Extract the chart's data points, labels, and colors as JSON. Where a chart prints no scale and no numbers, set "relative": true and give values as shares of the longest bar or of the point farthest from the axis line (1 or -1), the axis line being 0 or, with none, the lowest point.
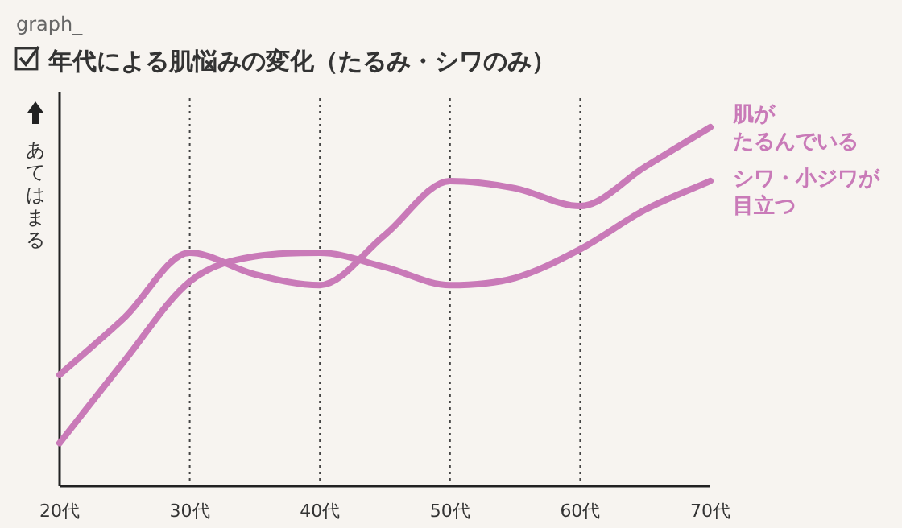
{
  "chart_data": {
    "type": "line",
    "title": "年代による肌悩みの変化（たるみ・シワのみ）",
    "ylabel": "あてはまる",
    "annotations": [
      "graph_"
    ],
    "relative": true,
    "grid": "x",
    "x": [
      20,
      25,
      30,
      35,
      40,
      45,
      50,
      55,
      60,
      65,
      70
    ],
    "xlim": [
      20,
      70
    ],
    "xticks": [
      {
        "value": 20,
        "label": "20代"
      },
      {
        "value": 30,
        "label": "30代"
      },
      {
        "value": 40,
        "label": "40代"
      },
      {
        "value": 50,
        "label": "50代"
      },
      {
        "value": 60,
        "label": "60代"
      },
      {
        "value": 70,
        "label": "70代"
      }
    ],
    "series": [
      {
        "name": "肌がたるんでいる",
        "color": "#c97ab8",
        "values": [
          0.31,
          0.47,
          0.65,
          0.59,
          0.56,
          0.7,
          0.85,
          0.83,
          0.78,
          0.89,
          1.0
        ]
      },
      {
        "name": "シワ・小ジワが目立つ",
        "color": "#c97ab8",
        "values": [
          0.12,
          0.35,
          0.57,
          0.64,
          0.65,
          0.61,
          0.56,
          0.58,
          0.66,
          0.77,
          0.85
        ]
      }
    ]
  }
}
